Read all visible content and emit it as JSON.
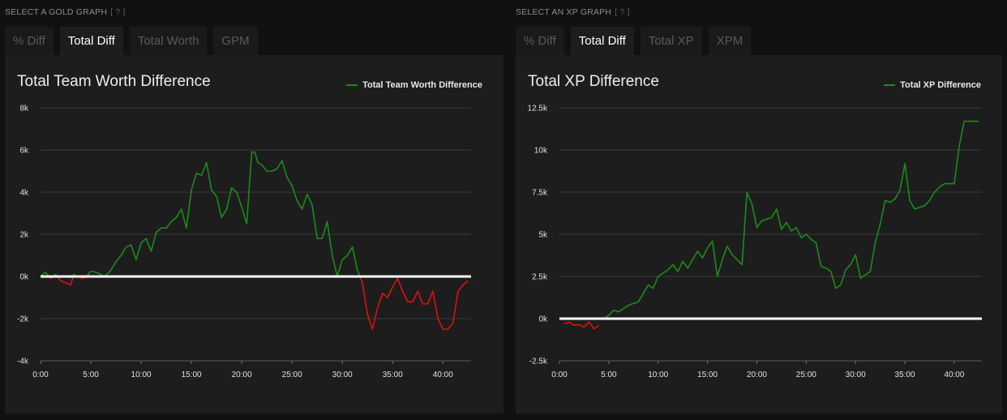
{
  "gold": {
    "section_label": "SELECT A GOLD GRAPH",
    "help": "[ ? ]",
    "tabs": [
      "% Diff",
      "Total Diff",
      "Total Worth",
      "GPM"
    ],
    "active_tab": 1,
    "chart_title": "Total Team Worth Difference",
    "legend_label": "Total Team Worth Difference"
  },
  "xp": {
    "section_label": "SELECT AN XP GRAPH",
    "help": "[ ? ]",
    "tabs": [
      "% Diff",
      "Total Diff",
      "Total XP",
      "XPM"
    ],
    "active_tab": 1,
    "chart_title": "Total XP Difference",
    "legend_label": "Total XP Difference"
  },
  "colors": {
    "positive": "#1d8a1d",
    "negative": "#e01010",
    "zero_line": "#ffffff",
    "grid": "#3a3a3a"
  },
  "chart_data": [
    {
      "type": "line",
      "title": "Total Team Worth Difference",
      "xlabel": "",
      "ylabel": "",
      "xlim": [
        0,
        42.8
      ],
      "ylim": [
        -4000,
        8000
      ],
      "x_ticks": [
        "0:00",
        "5:00",
        "10:00",
        "15:00",
        "20:00",
        "25:00",
        "30:00",
        "35:00",
        "40:00"
      ],
      "y_ticks": [
        "8k",
        "6k",
        "4k",
        "2k",
        "0k",
        "-2k",
        "-4k"
      ],
      "y_tick_values": [
        8000,
        6000,
        4000,
        2000,
        0,
        -2000,
        -4000
      ],
      "legend": "top-right",
      "grid": true,
      "series": [
        {
          "name": "Total Team Worth Difference",
          "x": [
            0,
            0.5,
            1,
            1.5,
            2,
            2.5,
            3,
            3.3,
            3.6,
            4,
            4.5,
            5,
            5.5,
            6,
            6.3,
            6.6,
            7,
            7.5,
            8,
            8.5,
            9,
            9.5,
            10,
            10.5,
            11,
            11.5,
            12,
            12.5,
            13,
            13.5,
            14,
            14.5,
            15,
            15.5,
            16,
            16.5,
            17,
            17.5,
            18,
            18.5,
            19,
            19.5,
            20,
            20.5,
            21,
            21.3,
            21.6,
            22,
            22.5,
            23,
            23.5,
            24,
            24.5,
            25,
            25.5,
            26,
            26.5,
            27,
            27.5,
            28,
            28.5,
            29,
            29.5,
            30,
            30.5,
            31,
            31.5,
            32,
            32.5,
            33,
            33.5,
            34,
            34.5,
            35,
            35.5,
            36,
            36.5,
            37,
            37.5,
            38,
            38.5,
            39,
            39.5,
            40,
            40.5,
            41,
            41.5,
            42,
            42.5
          ],
          "y": [
            0,
            200,
            -100,
            100,
            -200,
            -300,
            -400,
            100,
            0,
            -100,
            -50,
            250,
            200,
            100,
            0,
            100,
            300,
            700,
            1000,
            1400,
            1500,
            800,
            1600,
            1800,
            1200,
            2100,
            2300,
            2300,
            2600,
            2800,
            3200,
            2300,
            4100,
            4900,
            4800,
            5400,
            4100,
            3800,
            2800,
            3200,
            4200,
            4000,
            3300,
            2500,
            5900,
            5900,
            5400,
            5300,
            5000,
            5000,
            5100,
            5500,
            4700,
            4300,
            3600,
            3200,
            3900,
            3400,
            1800,
            1800,
            2600,
            1000,
            0,
            800,
            1000,
            1400,
            300,
            -300,
            -1800,
            -2500,
            -1500,
            -800,
            -1000,
            -500,
            -100,
            -700,
            -1200,
            -1200,
            -700,
            -1300,
            -1300,
            -700,
            -2000,
            -2500,
            -2500,
            -2200,
            -700,
            -400,
            -200
          ]
        }
      ]
    },
    {
      "type": "line",
      "title": "Total XP Difference",
      "xlabel": "",
      "ylabel": "",
      "xlim": [
        0,
        42.8
      ],
      "ylim": [
        -2500,
        12500
      ],
      "x_ticks": [
        "0:00",
        "5:00",
        "10:00",
        "15:00",
        "20:00",
        "25:00",
        "30:00",
        "35:00",
        "40:00"
      ],
      "y_ticks": [
        "12.5k",
        "10k",
        "7.5k",
        "5k",
        "2.5k",
        "0k",
        "-2.5k"
      ],
      "y_tick_values": [
        12500,
        10000,
        7500,
        5000,
        2500,
        0,
        -2500
      ],
      "legend": "top-right",
      "grid": true,
      "series": [
        {
          "name": "Total XP Difference",
          "x": [
            0,
            0.5,
            1,
            1.5,
            2,
            2.5,
            3,
            3.5,
            4,
            4.5,
            5,
            5.5,
            6,
            6.5,
            7,
            7.5,
            8,
            8.5,
            9,
            9.5,
            10,
            10.5,
            11,
            11.5,
            12,
            12.5,
            13,
            13.5,
            14,
            14.5,
            15,
            15.5,
            16,
            16.5,
            17,
            17.5,
            18,
            18.5,
            19,
            19.5,
            20,
            20.5,
            21,
            21.5,
            22,
            22.5,
            23,
            23.5,
            24,
            24.5,
            25,
            25.5,
            26,
            26.5,
            27,
            27.5,
            28,
            28.5,
            29,
            29.5,
            30,
            30.5,
            31,
            31.5,
            32,
            32.5,
            33,
            33.5,
            34,
            34.5,
            35,
            35.5,
            36,
            36.5,
            37,
            37.5,
            38,
            38.5,
            39,
            39.5,
            40,
            40.5,
            41,
            41.5,
            42,
            42.5
          ],
          "y": [
            0,
            -300,
            -200,
            -400,
            -350,
            -500,
            -200,
            -600,
            -400,
            0,
            200,
            500,
            400,
            600,
            800,
            900,
            1000,
            1500,
            2000,
            1800,
            2500,
            2700,
            2900,
            3200,
            2800,
            3400,
            3000,
            3500,
            4000,
            3600,
            4200,
            4600,
            2500,
            3500,
            4300,
            3800,
            3500,
            3200,
            7500,
            6800,
            5400,
            5800,
            5900,
            6000,
            6500,
            5300,
            5700,
            5200,
            5400,
            4800,
            5000,
            4700,
            4500,
            3100,
            3000,
            2800,
            1800,
            2000,
            2900,
            3200,
            3800,
            2400,
            2600,
            2800,
            4500,
            5600,
            7000,
            6900,
            7100,
            7600,
            9200,
            7000,
            6500,
            6600,
            6700,
            7000,
            7500,
            7800,
            8000,
            8000,
            8000,
            10200,
            11700,
            11700,
            11700,
            11700
          ]
        }
      ]
    }
  ]
}
